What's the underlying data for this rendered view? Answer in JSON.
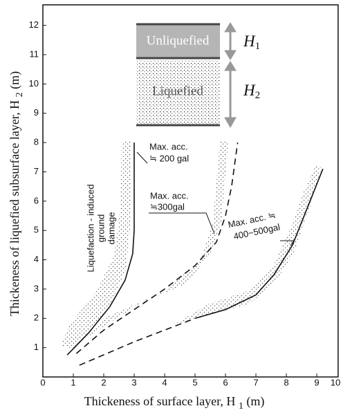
{
  "chart_data": {
    "type": "line",
    "x_label": {
      "text": "Thickeness of surface layer, H",
      "sub": "1",
      "unit": "(m)"
    },
    "y_label": {
      "text": "Thickeness of liquefied subsurface layer, H",
      "sub": "2",
      "unit": "(m)"
    },
    "xlim": [
      0,
      9.7
    ],
    "ylim": [
      0,
      12.7
    ],
    "xticks": [
      0,
      1,
      2,
      3,
      4,
      5,
      6,
      7,
      8,
      9,
      10
    ],
    "yticks": [
      1,
      2,
      3,
      4,
      5,
      6,
      7,
      8,
      9,
      10,
      11,
      12
    ],
    "series": [
      {
        "color": "#111111",
        "style": "solid",
        "x": [
          0.8,
          1.5,
          2.2,
          2.7,
          2.95,
          3.0,
          3.0
        ],
        "values": [
          0.75,
          1.5,
          2.4,
          3.3,
          4.2,
          5.0,
          8.0
        ]
      },
      {
        "color": "#111111",
        "style": "dashed",
        "x": [
          1.1,
          2.0,
          3.0,
          4.0,
          5.0,
          5.7,
          6.0,
          6.2,
          6.4
        ],
        "values": [
          0.8,
          1.6,
          2.3,
          3.0,
          3.8,
          4.6,
          5.5,
          6.5,
          8.0
        ]
      },
      {
        "color": "#111111",
        "style": "dashed",
        "x": [
          1.2,
          3.0,
          5.0
        ],
        "values": [
          0.4,
          1.2,
          2.0
        ]
      },
      {
        "color": "#111111",
        "style": "solid",
        "x": [
          5.0,
          6.0,
          7.0,
          7.6,
          8.2,
          8.7,
          9.2
        ],
        "values": [
          2.0,
          2.3,
          2.8,
          3.5,
          4.5,
          5.8,
          7.1
        ]
      }
    ],
    "annotations": {
      "a200": [
        "Max. acc.",
        "≒ 200 gal"
      ],
      "a300": [
        "Max. acc.",
        "≒300gal"
      ],
      "a400": [
        "Max. acc. ≒",
        "400~500gal"
      ],
      "damage": [
        "Liquefaction - induced",
        "ground",
        "damage"
      ]
    },
    "inset": {
      "top_layer": "Unliquefied",
      "bottom_layer": "Liquefied",
      "h1": {
        "text": "H",
        "sub": "1"
      },
      "h2": {
        "text": "H",
        "sub": "2"
      }
    }
  }
}
